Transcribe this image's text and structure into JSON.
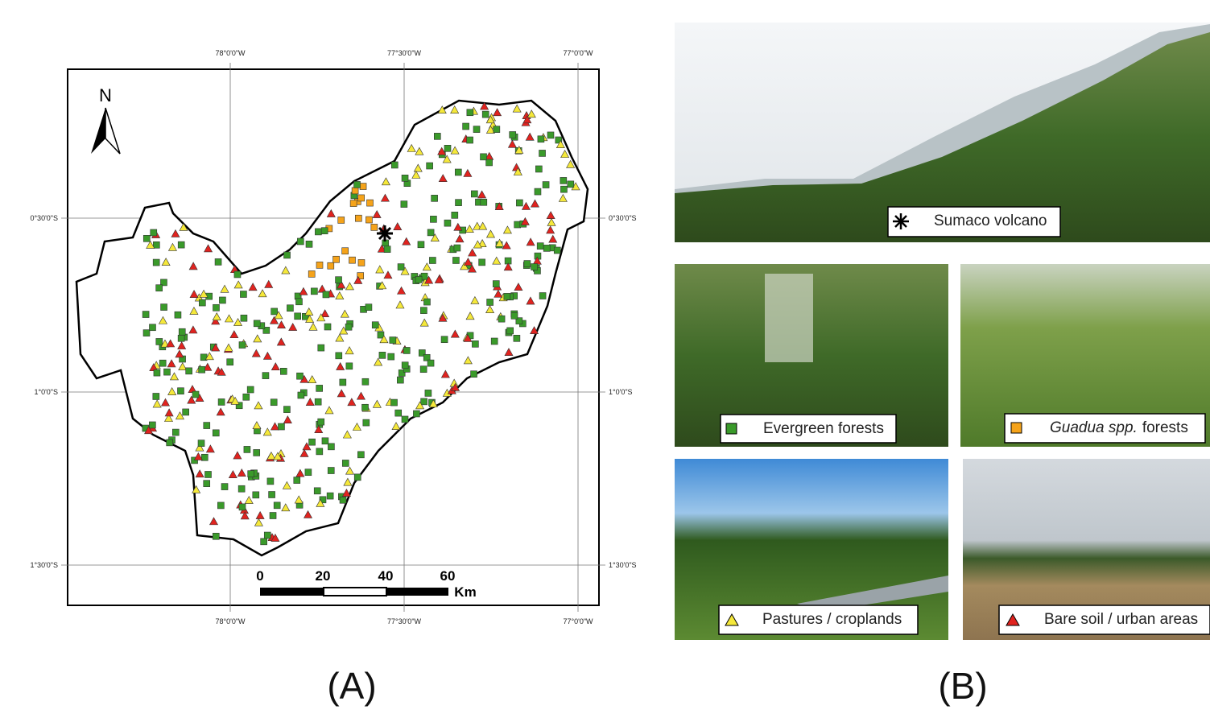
{
  "map": {
    "north_label": "N",
    "longitude_labels": [
      "78°0'0\"W",
      "77°30'0\"W",
      "77°0'0\"W"
    ],
    "latitude_labels": [
      "0°30'0\"S",
      "1°0'0\"S",
      "1°30'0\"S"
    ],
    "scale_bar": {
      "labels": [
        "0",
        "20",
        "40",
        "60"
      ],
      "unit": "Km"
    }
  },
  "panels": {
    "a_label": "(A)",
    "b_label": "(B)"
  },
  "photos": {
    "sumaco": "Sumaco volcano",
    "evergreen": "Evergreen forests",
    "guadua_italic": "Guadua spp.",
    "guadua_rest": "forests",
    "pastures": "Pastures / croplands",
    "bare": "Bare soil / urban areas"
  }
}
